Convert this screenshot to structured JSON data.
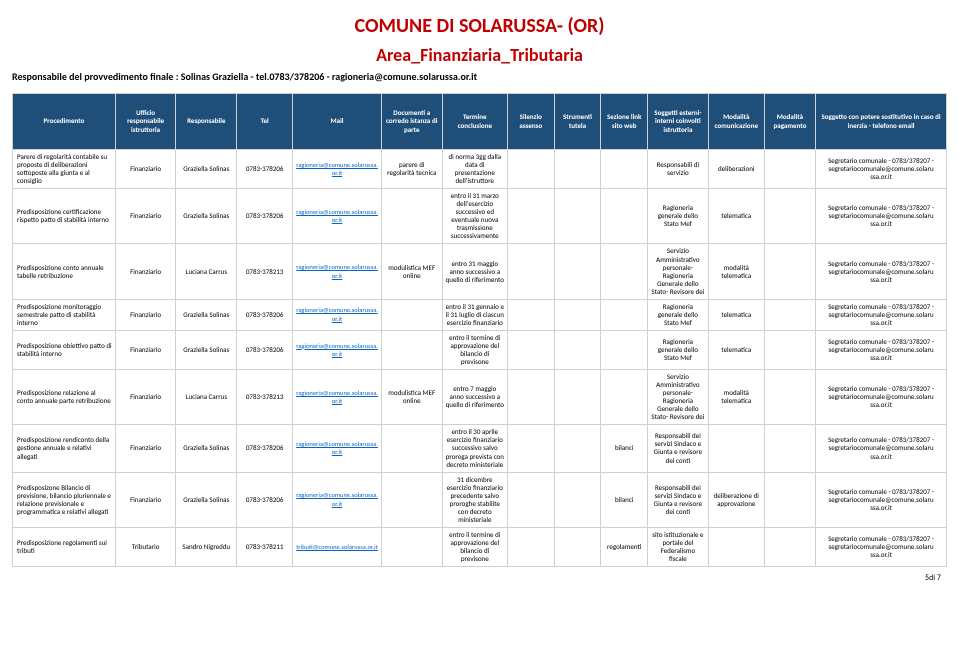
{
  "header": {
    "title1": "COMUNE DI SOLARUSSA- (OR)",
    "title2": "Area_Finanziaria_Tributaria",
    "subtitle": "Responsabile del provvedimento finale : Solinas Graziella  - tel.0783/378206 - ragioneria@comune.solarussa.or.it"
  },
  "columns": [
    "Procedimento",
    "Ufficio responsabile istruttoria",
    "Responsabile",
    "Tel",
    "Mail",
    "Documenti a corredo istanza di parte",
    "Termine conclusione",
    "Silenzio assenso",
    "Strumenti tutela",
    "Sezione link sito web",
    "Soggetti esterni-interni coinvolti istruttoria",
    "Modalità comunicazione",
    "Modalità pagamento",
    "Soggetto con potere sostitutivo in caso di inerzia - telefono email"
  ],
  "rows": [
    {
      "c0": "Parere di regolarità contabile su proposte di deliberazioni sottoposte alla giunta e al consiglio",
      "c1": "Finanziario",
      "c2": "Graziella Solinas",
      "c3": "0783-378206",
      "c4": "ragioneria@comune.solarussa.or.it",
      "c5": "parere di regolarità tecnica",
      "c6": "di norma 3gg dalla data di presentazione dell'istruttore",
      "c7": "",
      "c8": "",
      "c9": "",
      "c10": "Responsabili di servizio",
      "c11": "deliberazioni",
      "c12": "",
      "c13": "Segretario comunale - 0783/378207 - segretariocomunale@comune.solaru ssa.or.it"
    },
    {
      "c0": "Predisposizione certificazione rispetto patto di stabilità interno",
      "c1": "Finanziario",
      "c2": "Graziella Solinas",
      "c3": "0783-378206",
      "c4": "ragioneria@comune.solarussa.or.it",
      "c5": "",
      "c6": "entro il 31 marzo dell'esercizio successivo ed eventuale nuova trasmissione successivamente",
      "c7": "",
      "c8": "",
      "c9": "",
      "c10": "Ragioneria generale dello Stato Mef",
      "c11": "telematica",
      "c12": "",
      "c13": "Segretario comunale - 0783/378207 - segretariocomunale@comune.solaru ssa.or.it"
    },
    {
      "c0": "Predisposizione conto annuale tabelle retribuzione",
      "c1": "Finanziario",
      "c2": "Luciana Carrus",
      "c3": "0783-378213",
      "c4": "ragioneria@comune.solarussa.or.it",
      "c5": "modulistica MEF online",
      "c6": "entro 31 maggio anno successivo a quello di riferimento",
      "c7": "",
      "c8": "",
      "c9": "",
      "c10": "Servizio Amministrativo personale- Ragioneria Generale dello Stato- Revisore dei",
      "c11": "modalità telematica",
      "c12": "",
      "c13": "Segretario comunale - 0783/378207 - segretariocomunale@comune.solaru ssa.or.it"
    },
    {
      "c0": "Predisposizione monitoraggio semestrale patto di stabilità interno",
      "c1": "Finanziario",
      "c2": "Graziella Solinas",
      "c3": "0783-378206",
      "c4": "ragioneria@comune.solarussa.or.it",
      "c5": "",
      "c6": "entro il 31 gennaio e il 31 luglio di ciascun esercizio finanziario",
      "c7": "",
      "c8": "",
      "c9": "",
      "c10": "Ragioneria generale dello Stato Mef",
      "c11": "telematica",
      "c12": "",
      "c13": "Segretario comunale - 0783/378207 - segretariocomunale@comune.solaru ssa.or.it"
    },
    {
      "c0": "Predisposizione obiettivo patto di stabilità interno",
      "c1": "Finanziario",
      "c2": "Graziella Solinas",
      "c3": "0783-378206",
      "c4": "ragioneria@comune.solarussa.or.it",
      "c5": "",
      "c6": "entro il termine di approvazione del bilancio di previsone",
      "c7": "",
      "c8": "",
      "c9": "",
      "c10": "Ragioneria generale dello Stato Mef",
      "c11": "telematica",
      "c12": "",
      "c13": "Segretario comunale - 0783/378207 - segretariocomunale@comune.solaru ssa.or.it"
    },
    {
      "c0": "Predisposizione relazione al conto annuale parte retribuzione",
      "c1": "Finanziario",
      "c2": "Luciana Carrus",
      "c3": "0783-378213",
      "c4": "ragioneria@comune.solarussa.or.it",
      "c5": "modulistica MEF online",
      "c6": "entro 7 maggio anno successivo a quello di riferimento",
      "c7": "",
      "c8": "",
      "c9": "",
      "c10": "Servizio Amministrativo personale- Ragioneria Generale dello Stato- Revisore dei",
      "c11": "modalità telematica",
      "c12": "",
      "c13": "Segretario comunale - 0783/378207 - segretariocomunale@comune.solaru ssa.or.it"
    },
    {
      "c0": "Predisposizione rendiconto della gestione annuale e relativi allegati",
      "c1": "Finanziario",
      "c2": "Graziella Solinas",
      "c3": "0783-378206",
      "c4": "ragioneria@comune.solarussa.or.it",
      "c5": "",
      "c6": "entro il 30 aprile esercizio finanziario successivo salvo proroga prevista con decreto ministeriale",
      "c7": "",
      "c8": "",
      "c9": "bilanci",
      "c10": "Responsabili dei servizi Sindaco e Giunta e revisore dei conti",
      "c11": "",
      "c12": "",
      "c13": "Segretario comunale - 0783/378207 - segretariocomunale@comune.solaru ssa.or.it"
    },
    {
      "c0": "Predisposizone Bilancio di previsione, bilancio pluriennale e relazione previsionale e programmatica e relativi allegati",
      "c1": "Finanziario",
      "c2": "Graziella Solinas",
      "c3": "0783-378206",
      "c4": "ragioneria@comune.solarussa.or.it",
      "c5": "",
      "c6": "31 dicembre esercizio finanziario precedente salvo proroghe stabilite con decreto ministeriale",
      "c7": "",
      "c8": "",
      "c9": "bilanci",
      "c10": "Responsabili dei servizi Sindaco e Giunta e revisore dei conti",
      "c11": "deliberazione di approvazione",
      "c12": "",
      "c13": "Segretario comunale - 0783/378207 - segretariocomunale@comune.solaru ssa.or.it"
    },
    {
      "c0": "Predisposizione regolamenti sui tributi",
      "c1": "Tributario",
      "c2": "Sandro Nigreddu",
      "c3": "0783-378211",
      "c4": "tributi@comune.solarussa.or.it",
      "c5": "",
      "c6": "entro il termine di approvazione del bilancio di previsone",
      "c7": "",
      "c8": "",
      "c9": "regolamenti",
      "c10": "sito istituzionale e portale del Federalismo fiscale",
      "c11": "",
      "c12": "",
      "c13": "Segretario comunale - 0783/378207 - segretariocomunale@comune.solaru ssa.or.it"
    }
  ],
  "footer": "5di 7",
  "styling": {
    "header_bg": "#1f4e79",
    "header_fg": "#ffffff",
    "title_color": "#c00000",
    "border_color": "#d0d0d0",
    "link_color": "#0563c1",
    "page_bg": "#ffffff"
  }
}
